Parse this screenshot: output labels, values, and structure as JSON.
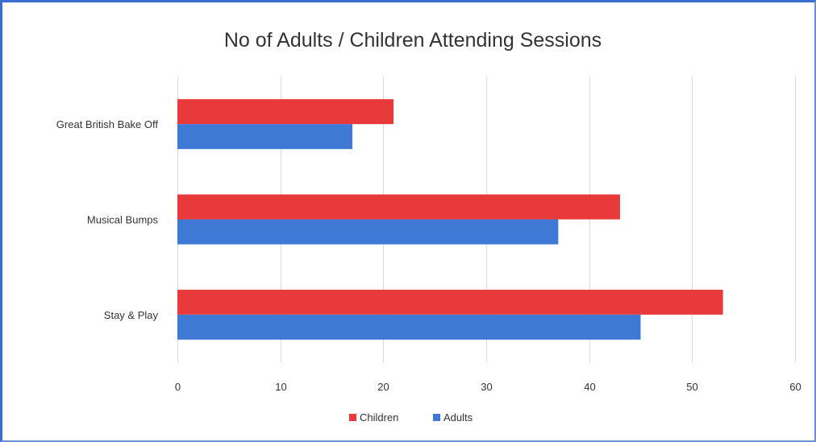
{
  "chart_data": {
    "type": "bar",
    "orientation": "horizontal",
    "title": "No of Adults / Children Attending Sessions",
    "xlabel": "",
    "ylabel": "",
    "categories": [
      "Great British Bake Off",
      "Musical Bumps",
      "Stay & Play"
    ],
    "series": [
      {
        "name": "Children",
        "values": [
          21,
          43,
          53
        ],
        "color": "#e8393b"
      },
      {
        "name": "Adults",
        "values": [
          17,
          37,
          45
        ],
        "color": "#3f79d6"
      }
    ],
    "xlim": [
      0,
      60
    ],
    "xticks": [
      "0",
      "10",
      "20",
      "30",
      "40",
      "50",
      "60"
    ],
    "grid": true,
    "legend_position": "bottom"
  }
}
